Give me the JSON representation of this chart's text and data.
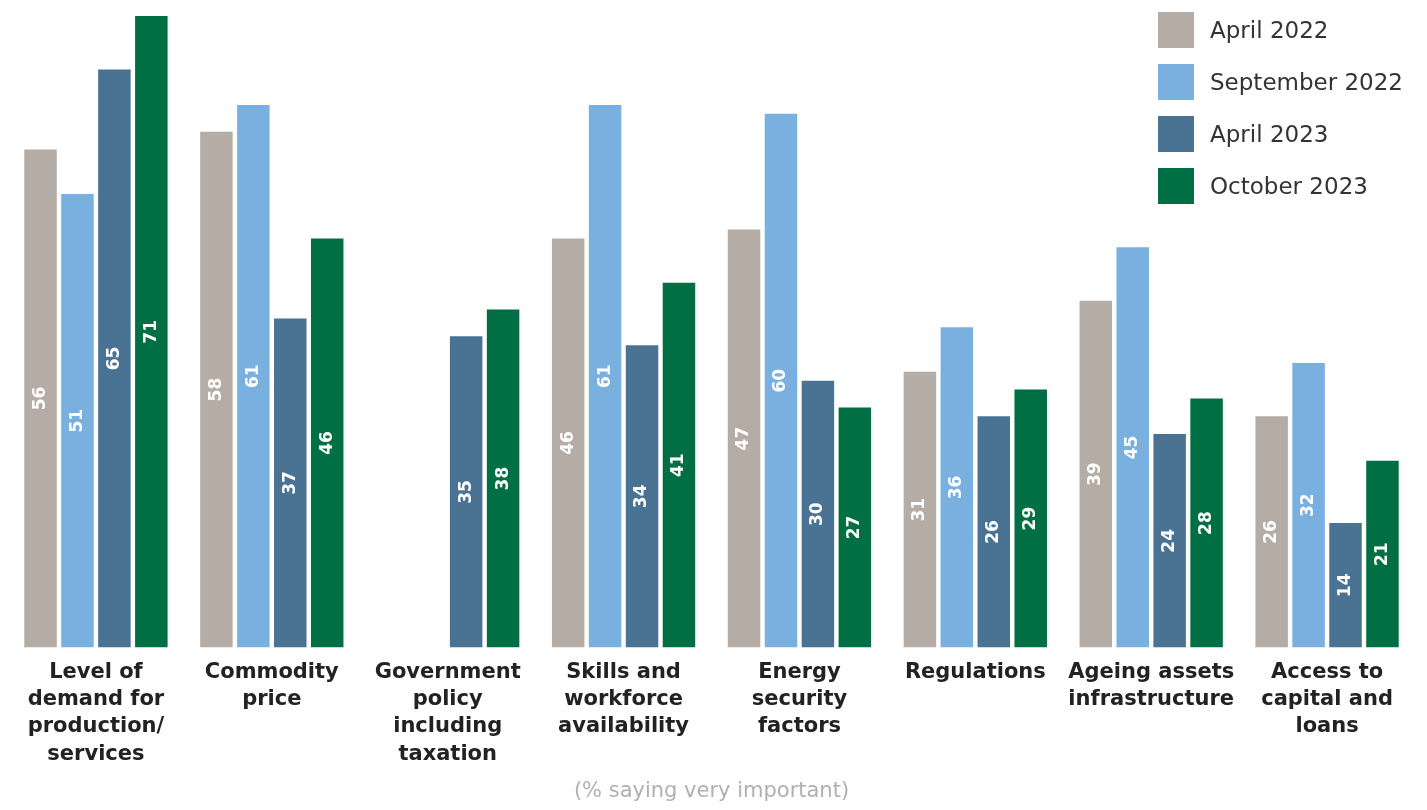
{
  "chart_data": {
    "type": "bar",
    "xlabel": "(% saying very important)",
    "categories": [
      "Level of demand for production/ services",
      "Commodity price",
      "Government policy including taxation",
      "Skills and workforce availability",
      "Energy security factors",
      "Regulations",
      "Ageing assets infrastructure",
      "Access to capital and loans"
    ],
    "series": [
      {
        "name": "April 2022",
        "color": "#b5ada5",
        "values": [
          56,
          58,
          null,
          46,
          47,
          31,
          39,
          26
        ]
      },
      {
        "name": "September 2022",
        "color": "#7ab0e0",
        "values": [
          51,
          61,
          null,
          61,
          60,
          36,
          45,
          32
        ]
      },
      {
        "name": "April 2023",
        "color": "#4a7292",
        "values": [
          65,
          37,
          35,
          34,
          30,
          26,
          24,
          14
        ]
      },
      {
        "name": "October 2023",
        "color": "#006f44",
        "values": [
          71,
          46,
          38,
          41,
          27,
          29,
          28,
          21
        ]
      }
    ],
    "data_labels": true,
    "legend": "top right",
    "grid": false,
    "ylim": [
      0,
      71
    ]
  }
}
